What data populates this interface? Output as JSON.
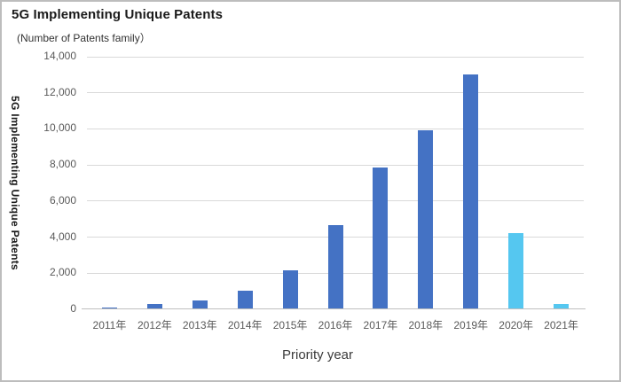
{
  "chart_data": {
    "type": "bar",
    "title": "5G Implementing Unique Patents",
    "subtitle": "(Number of Patents family）",
    "ylabel": "5G Implementing Unique Patents",
    "xlabel": "Priority year",
    "categories": [
      "2011年",
      "2012年",
      "2013年",
      "2014年",
      "2015年",
      "2016年",
      "2017年",
      "2018年",
      "2019年",
      "2020年",
      "2021年"
    ],
    "values": [
      100,
      300,
      500,
      1050,
      2150,
      4650,
      7850,
      9900,
      13000,
      4200,
      300
    ],
    "bar_colors": [
      "#4472C4",
      "#4472C4",
      "#4472C4",
      "#4472C4",
      "#4472C4",
      "#4472C4",
      "#4472C4",
      "#4472C4",
      "#4472C4",
      "#55C7F0",
      "#55C7F0"
    ],
    "ylim": [
      0,
      14000
    ],
    "ytick_step": 2000,
    "ytick_labels": [
      "0",
      "2,000",
      "4,000",
      "6,000",
      "8,000",
      "10,000",
      "12,000",
      "14,000"
    ],
    "grid": "horizontal",
    "legend": "none",
    "colors": {
      "primary": "#4472C4",
      "highlight": "#55C7F0",
      "gridline": "#D9D9D9",
      "axis_line": "#BFBFBF",
      "tick_text": "#595959",
      "title_text": "#1A1A1A"
    }
  }
}
